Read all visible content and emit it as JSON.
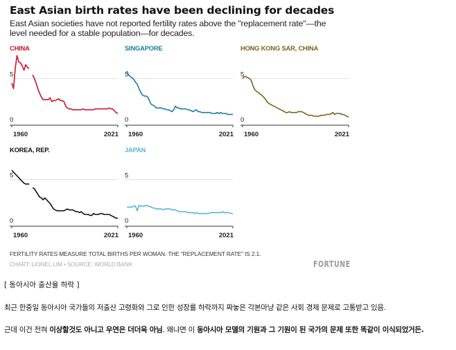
{
  "header": {
    "title": "East Asian birth rates have been declining for decades",
    "subtitle": "East Asian societies have not reported fertility rates above the \"replacement rate\"—the level needed for a stable population—for decades."
  },
  "chart_data": [
    {
      "type": "line",
      "title": "CHINA",
      "color": "#d0112b",
      "x": [
        1960,
        1961,
        1962,
        1963,
        1964,
        1965,
        1966,
        1967,
        1968,
        1969,
        1970,
        1971,
        1972,
        1973,
        1974,
        1975,
        1976,
        1977,
        1978,
        1979,
        1980,
        1981,
        1982,
        1983,
        1984,
        1985,
        1986,
        1987,
        1988,
        1989,
        1990,
        1991,
        1992,
        1993,
        1994,
        1995,
        1996,
        1997,
        1998,
        1999,
        2000,
        2001,
        2002,
        2003,
        2004,
        2005,
        2006,
        2007,
        2008,
        2009,
        2010,
        2011,
        2012,
        2013,
        2014,
        2015,
        2016,
        2017,
        2018,
        2019,
        2020,
        2021
      ],
      "y": [
        4.5,
        3.9,
        6.1,
        7.5,
        6.8,
        6.7,
        6.4,
        5.9,
        6.5,
        6.2,
        6.1,
        null,
        5.4,
        5.0,
        4.5,
        3.9,
        3.4,
        3.0,
        2.7,
        2.7,
        2.7,
        2.7,
        2.9,
        2.5,
        2.6,
        2.6,
        2.7,
        2.8,
        2.6,
        2.6,
        2.5,
        2.0,
        1.8,
        1.7,
        1.7,
        1.6,
        1.6,
        1.6,
        1.6,
        1.6,
        1.6,
        1.7,
        1.6,
        1.6,
        1.6,
        1.6,
        1.6,
        1.6,
        1.7,
        1.7,
        1.7,
        1.7,
        1.7,
        1.7,
        1.7,
        1.7,
        1.8,
        1.7,
        1.7,
        1.5,
        1.3,
        1.2
      ],
      "xticks": [
        "1960",
        "2021"
      ],
      "yticks": [
        "0",
        "5"
      ],
      "ylim": [
        0,
        7.5
      ],
      "reference_line": 5
    },
    {
      "type": "line",
      "title": "SINGAPORE",
      "color": "#1a7ea0",
      "x": [
        1960,
        1961,
        1962,
        1963,
        1964,
        1965,
        1966,
        1967,
        1968,
        1969,
        1970,
        1971,
        1972,
        1973,
        1974,
        1975,
        1976,
        1977,
        1978,
        1979,
        1980,
        1981,
        1982,
        1983,
        1984,
        1985,
        1986,
        1987,
        1988,
        1989,
        1990,
        1991,
        1992,
        1993,
        1994,
        1995,
        1996,
        1997,
        1998,
        1999,
        2000,
        2001,
        2002,
        2003,
        2004,
        2005,
        2006,
        2007,
        2008,
        2009,
        2010,
        2011,
        2012,
        2013,
        2014,
        2015,
        2016,
        2017,
        2018,
        2019,
        2020,
        2021
      ],
      "y": [
        5.8,
        5.4,
        5.2,
        5.1,
        4.9,
        4.6,
        4.4,
        3.9,
        3.5,
        3.2,
        3.1,
        3.1,
        3.0,
        2.6,
        2.2,
        2.1,
        2.0,
        1.8,
        1.8,
        1.8,
        1.8,
        1.7,
        1.7,
        1.6,
        1.6,
        1.5,
        1.4,
        1.6,
        2.0,
        1.8,
        1.8,
        1.7,
        1.7,
        1.7,
        1.7,
        1.6,
        1.6,
        1.5,
        1.4,
        1.5,
        1.6,
        1.4,
        1.4,
        1.3,
        1.3,
        1.3,
        1.3,
        1.3,
        1.3,
        1.2,
        1.2,
        1.2,
        1.3,
        1.2,
        1.3,
        1.2,
        1.2,
        1.2,
        1.1,
        1.1,
        1.1,
        1.1
      ],
      "xticks": [
        "1960",
        "2021"
      ],
      "yticks": [
        "0",
        "5"
      ],
      "ylim": [
        0,
        7.5
      ],
      "reference_line": 5
    },
    {
      "type": "line",
      "title": "HONG KONG SAR, CHINA",
      "color": "#7a6317",
      "x": [
        1960,
        1961,
        1962,
        1963,
        1964,
        1965,
        1966,
        1967,
        1968,
        1969,
        1970,
        1971,
        1972,
        1973,
        1974,
        1975,
        1976,
        1977,
        1978,
        1979,
        1980,
        1981,
        1982,
        1983,
        1984,
        1985,
        1986,
        1987,
        1988,
        1989,
        1990,
        1991,
        1992,
        1993,
        1994,
        1995,
        1996,
        1997,
        1998,
        1999,
        2000,
        2001,
        2002,
        2003,
        2004,
        2005,
        2006,
        2007,
        2008,
        2009,
        2010,
        2011,
        2012,
        2013,
        2014,
        2015,
        2016,
        2017,
        2018,
        2019,
        2020,
        2021
      ],
      "y": [
        5.0,
        5.2,
        5.2,
        5.1,
        5.0,
        4.8,
        4.2,
        3.8,
        3.6,
        3.5,
        3.3,
        3.2,
        3.0,
        2.8,
        2.5,
        2.3,
        2.2,
        2.1,
        2.0,
        1.9,
        1.8,
        1.7,
        1.6,
        1.5,
        1.4,
        1.3,
        1.3,
        1.4,
        1.3,
        1.3,
        1.3,
        1.3,
        1.4,
        1.4,
        1.4,
        1.3,
        1.2,
        1.1,
        1.0,
        1.0,
        1.0,
        0.9,
        0.9,
        0.9,
        0.9,
        1.0,
        1.0,
        1.0,
        1.1,
        1.1,
        1.1,
        1.2,
        1.3,
        1.1,
        1.2,
        1.2,
        1.2,
        1.1,
        1.1,
        1.0,
        0.9,
        0.8
      ],
      "xticks": [
        "1960",
        "2021"
      ],
      "yticks": [
        "0",
        "5"
      ],
      "ylim": [
        0,
        7.5
      ],
      "reference_line": 5
    },
    {
      "type": "line",
      "title": "KOREA, REP.",
      "color": "#111111",
      "x": [
        1960,
        1961,
        1962,
        1963,
        1964,
        1965,
        1966,
        1967,
        1968,
        1969,
        1970,
        1971,
        1972,
        1973,
        1974,
        1975,
        1976,
        1977,
        1978,
        1979,
        1980,
        1981,
        1982,
        1983,
        1984,
        1985,
        1986,
        1987,
        1988,
        1989,
        1990,
        1991,
        1992,
        1993,
        1994,
        1995,
        1996,
        1997,
        1998,
        1999,
        2000,
        2001,
        2002,
        2003,
        2004,
        2005,
        2006,
        2007,
        2008,
        2009,
        2010,
        2011,
        2012,
        2013,
        2014,
        2015,
        2016,
        2017,
        2018,
        2019,
        2020,
        2021
      ],
      "y": [
        6.0,
        5.8,
        5.6,
        5.4,
        5.2,
        5.0,
        4.8,
        4.6,
        4.5,
        4.5,
        4.5,
        null,
        4.1,
        4.0,
        3.7,
        3.4,
        3.1,
        3.0,
        2.8,
        3.0,
        2.8,
        2.6,
        2.4,
        2.1,
        1.8,
        1.7,
        1.6,
        1.6,
        1.6,
        1.6,
        1.6,
        1.7,
        1.8,
        1.7,
        1.7,
        1.7,
        1.6,
        1.5,
        1.5,
        1.4,
        1.5,
        1.3,
        1.2,
        1.2,
        1.2,
        1.1,
        1.1,
        1.3,
        1.2,
        1.2,
        1.2,
        1.3,
        1.3,
        1.2,
        1.2,
        1.2,
        1.2,
        1.1,
        1.0,
        0.9,
        0.8,
        0.8
      ],
      "xticks": [
        "1960",
        "2021"
      ],
      "yticks": [
        "0",
        "5"
      ],
      "ylim": [
        0,
        7.5
      ],
      "reference_line": 5
    },
    {
      "type": "line",
      "title": "JAPAN",
      "color": "#5ab4d4",
      "x": [
        1960,
        1961,
        1962,
        1963,
        1964,
        1965,
        1966,
        1967,
        1968,
        1969,
        1970,
        1971,
        1972,
        1973,
        1974,
        1975,
        1976,
        1977,
        1978,
        1979,
        1980,
        1981,
        1982,
        1983,
        1984,
        1985,
        1986,
        1987,
        1988,
        1989,
        1990,
        1991,
        1992,
        1993,
        1994,
        1995,
        1996,
        1997,
        1998,
        1999,
        2000,
        2001,
        2002,
        2003,
        2004,
        2005,
        2006,
        2007,
        2008,
        2009,
        2010,
        2011,
        2012,
        2013,
        2014,
        2015,
        2016,
        2017,
        2018,
        2019,
        2020,
        2021
      ],
      "y": [
        2.0,
        2.0,
        2.0,
        2.0,
        2.1,
        2.1,
        1.6,
        2.2,
        2.1,
        2.1,
        2.1,
        2.2,
        2.1,
        2.1,
        2.0,
        1.9,
        1.9,
        1.8,
        1.8,
        1.8,
        1.8,
        1.7,
        1.8,
        1.8,
        1.8,
        1.8,
        1.7,
        1.7,
        1.7,
        1.6,
        1.5,
        1.5,
        1.5,
        1.5,
        1.5,
        1.4,
        1.4,
        1.4,
        1.4,
        1.3,
        1.4,
        1.3,
        1.3,
        1.3,
        1.3,
        1.3,
        1.3,
        1.3,
        1.4,
        1.4,
        1.4,
        1.4,
        1.4,
        1.4,
        1.4,
        1.5,
        1.4,
        1.4,
        1.4,
        1.4,
        1.3,
        1.3
      ],
      "xticks": [
        "1960",
        "2021"
      ],
      "yticks": [
        "0",
        "5"
      ],
      "ylim": [
        0,
        7.5
      ],
      "reference_line": 5
    }
  ],
  "footer": {
    "note": "FERTILITY RATES MEASURE TOTAL BIRTHS PER WOMAN. THE \"REPLACEMENT RATE\" IS 2.1.",
    "credit": "CHART: LIONEL LIM • SOURCE: WORLD BANK",
    "logo": "FORTUNE"
  },
  "article": {
    "caption": "[ 동아시아 출산율 하락 ]",
    "paragraph1": "최근 한중일 동아시아 국가들의 저출산 고령화와 그로 인한 성장률 하락까지 짜놓은 각본마냥 같은 사회 경제 문제로 고통받고 있음.",
    "paragraph2_parts": [
      {
        "text": "근데 이건 전혀 ",
        "bold": false
      },
      {
        "text": "이상할것도 아니고 우연은 더더욱 아님",
        "bold": true
      },
      {
        "text": ". 왜냐면 이 ",
        "bold": false
      },
      {
        "text": "동아시아 모델의 기원과 그 기원이 된 국가의 문제 또한 똑같이 이식되었거든.",
        "bold": true
      }
    ]
  }
}
